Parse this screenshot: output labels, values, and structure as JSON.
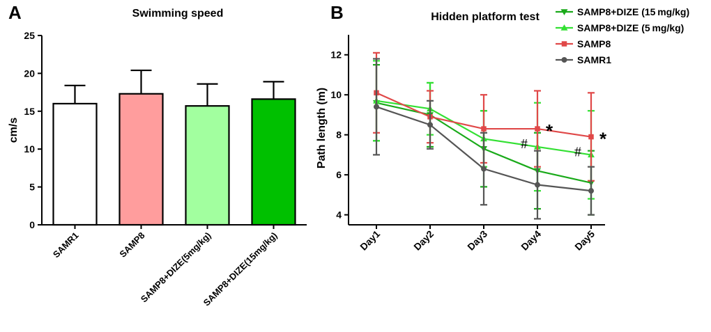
{
  "chart_data": [
    {
      "panel": "A",
      "type": "bar",
      "title": "Swimming speed",
      "xlabel": "",
      "ylabel": "cm/s",
      "ylim": [
        0,
        25
      ],
      "yticks": [
        0,
        5,
        10,
        15,
        20,
        25
      ],
      "categories": [
        "SAMR1",
        "SAMP8",
        "SAMP8+DIZE(5mg/kg)",
        "SAMP8+DIZE(15mg/kg)"
      ],
      "values": [
        16.0,
        17.3,
        15.7,
        16.6
      ],
      "errors": [
        2.4,
        3.1,
        2.9,
        2.3
      ],
      "colors": [
        "#ffffff",
        "#ff9d9d",
        "#a2ff9f",
        "#00c000"
      ]
    },
    {
      "panel": "B",
      "type": "line",
      "title": "Hidden platform test",
      "xlabel": "",
      "ylabel": "Path length (m)",
      "ylim": [
        3.5,
        13
      ],
      "yticks": [
        4,
        6,
        8,
        10,
        12
      ],
      "categories": [
        "Day1",
        "Day2",
        "Day3",
        "Day4",
        "Day5"
      ],
      "series": [
        {
          "name": "SAMP8+DIZE (15 mg/kg)",
          "color": "#1aaa1a",
          "marker": "triangle-down",
          "values": [
            9.6,
            9.0,
            7.3,
            6.2,
            5.6
          ],
          "errors": [
            1.9,
            1.6,
            1.9,
            1.9,
            1.6
          ]
        },
        {
          "name": "SAMP8+DIZE (5 mg/kg)",
          "color": "#33e033",
          "marker": "triangle-up",
          "values": [
            9.7,
            9.3,
            7.8,
            7.4,
            7.0
          ],
          "errors": [
            2.0,
            1.3,
            1.4,
            2.2,
            2.2
          ]
        },
        {
          "name": "SAMP8",
          "color": "#e04848",
          "marker": "square",
          "values": [
            10.1,
            8.9,
            8.3,
            8.3,
            7.9
          ],
          "errors": [
            2.0,
            1.3,
            1.7,
            1.9,
            2.2
          ]
        },
        {
          "name": "SAMR1",
          "color": "#555555",
          "marker": "circle",
          "values": [
            9.4,
            8.5,
            6.3,
            5.5,
            5.2
          ],
          "errors": [
            2.4,
            1.2,
            1.8,
            1.7,
            1.2
          ]
        }
      ],
      "annotations": [
        {
          "text": "*",
          "day": "Day4",
          "series": "SAMP8"
        },
        {
          "text": "*",
          "day": "Day5",
          "series": "SAMP8"
        },
        {
          "text": "#",
          "day": "Day4",
          "series": "SAMP8+DIZE (5 mg/kg)"
        },
        {
          "text": "#",
          "day": "Day5",
          "series": "SAMP8+DIZE (5 mg/kg)"
        }
      ]
    }
  ]
}
